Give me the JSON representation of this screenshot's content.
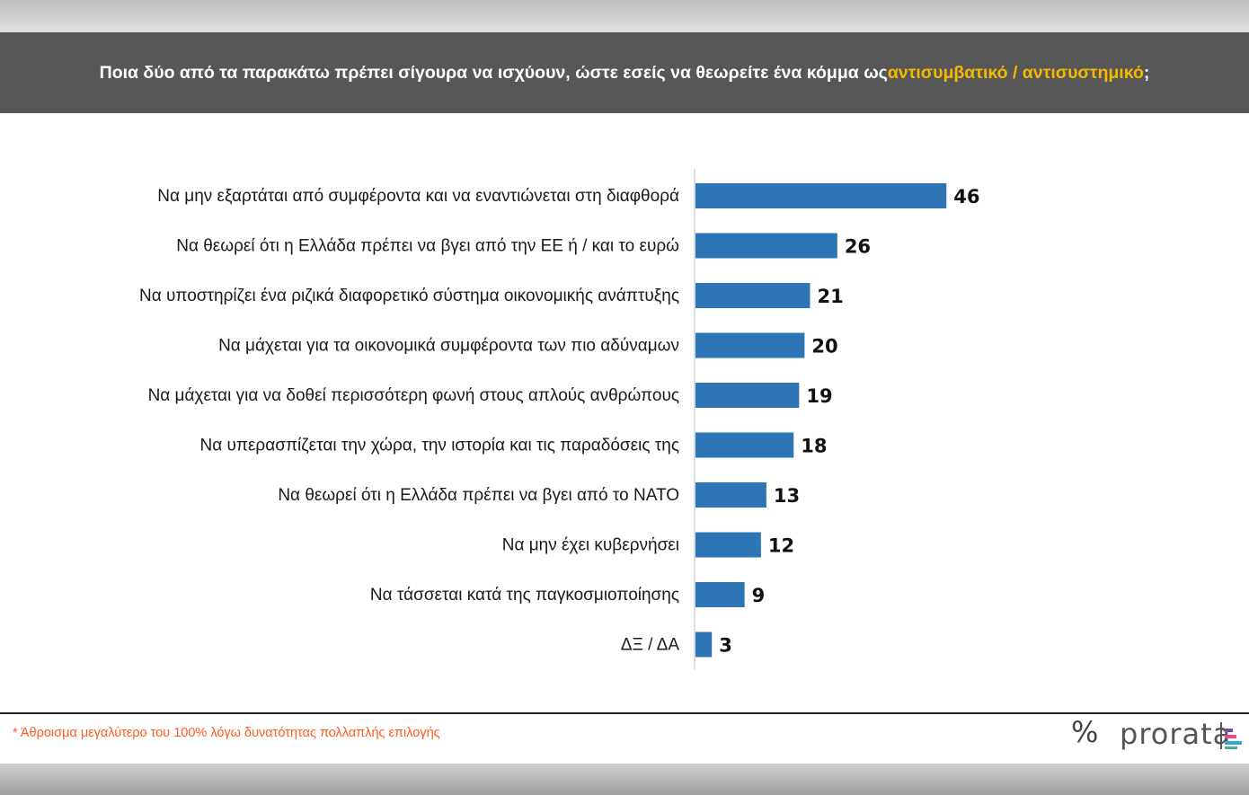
{
  "header": {
    "title_part1": "Ποια δύο από τα παρακάτω πρέπει σίγουρα να ισχύουν, ώστε εσείς να θεωρείτε ένα κόμμα ως ",
    "title_highlight": "αντισυμβατικό / αντισυστημικό",
    "title_end": ";"
  },
  "colors": {
    "bar": "#2e75b6",
    "highlight": "#f5b800",
    "header_bg": "#575757",
    "footnote": "#ff5a1f"
  },
  "chart_data": {
    "type": "bar",
    "orientation": "horizontal",
    "categories": [
      "Να μην εξαρτάται από συμφέροντα και να εναντιώνεται στη διαφθορά",
      "Να θεωρεί ότι η Ελλάδα πρέπει να βγει από την ΕΕ ή / και το ευρώ",
      "Να υποστηρίζει ένα ριζικά διαφορετικό σύστημα οικονομικής ανάπτυξης",
      "Να μάχεται για τα οικονομικά συμφέροντα των πιο αδύναμων",
      "Να μάχεται για να δοθεί περισσότερη φωνή στους απλούς ανθρώπους",
      "Να υπερασπίζεται την χώρα, την ιστορία και τις παραδόσεις της",
      "Να θεωρεί ότι η Ελλάδα πρέπει να βγει από το ΝΑΤΟ",
      "Να μην έχει κυβερνήσει",
      "Να τάσσεται κατά της παγκοσμιοποίησης",
      "ΔΞ / ΔΑ"
    ],
    "values": [
      46,
      26,
      21,
      20,
      19,
      18,
      13,
      12,
      9,
      3
    ],
    "xlim": [
      0,
      100
    ],
    "title": "",
    "xlabel": "",
    "ylabel": ""
  },
  "footnote": "* Άθροισμα μεγαλύτερο του 100% λόγω δυνατότητας πολλαπλής επιλογής",
  "logo": {
    "symbol": "%",
    "word": "prorata"
  }
}
